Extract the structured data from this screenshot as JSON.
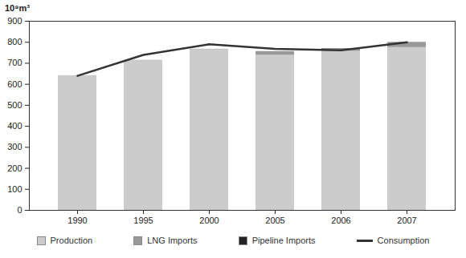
{
  "chart_data": {
    "type": "bar",
    "stacked": true,
    "ylabel": "10⁹m³",
    "categories": [
      "1990",
      "1995",
      "2000",
      "2005",
      "2006",
      "2007"
    ],
    "series": [
      {
        "name": "Production",
        "type": "bar",
        "color": "#cccccc",
        "values": [
          640,
          712,
          765,
          738,
          757,
          775
        ]
      },
      {
        "name": "LNG Imports",
        "type": "bar",
        "color": "#999999",
        "values": [
          1,
          2,
          2,
          18,
          12,
          23
        ]
      },
      {
        "name": "Pipeline Imports",
        "type": "bar",
        "color": "#222222",
        "values": [
          0,
          0,
          0,
          0,
          1,
          1
        ]
      },
      {
        "name": "Consumption",
        "type": "line",
        "color": "#333333",
        "values": [
          640,
          740,
          790,
          768,
          762,
          800
        ]
      }
    ],
    "ylim": [
      0,
      900
    ],
    "yticks": [
      0,
      100,
      200,
      300,
      400,
      500,
      600,
      700,
      800,
      900
    ],
    "grid": false,
    "legend": "bottom"
  }
}
